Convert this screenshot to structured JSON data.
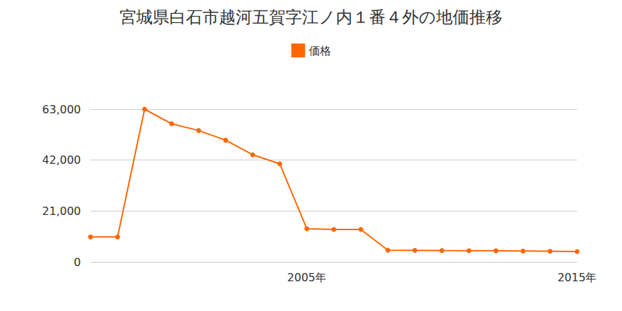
{
  "chart_data": {
    "type": "line",
    "title": "宮城県白石市越河五賀字江ノ内１番４外の地価推移",
    "categories": [
      null,
      null,
      null,
      null,
      null,
      null,
      null,
      null,
      "2005年",
      null,
      null,
      null,
      null,
      null,
      null,
      null,
      null,
      null,
      "2015年"
    ],
    "series": [
      {
        "name": "価格",
        "color": "#ff6600",
        "marker": "circle",
        "line_style": "solid",
        "values": [
          10300,
          10300,
          63000,
          57000,
          54200,
          50200,
          44200,
          40500,
          13700,
          13400,
          13400,
          4850,
          4800,
          4700,
          4650,
          4600,
          4500,
          4400,
          4300
        ]
      }
    ],
    "ylim": [
      0,
      63000
    ],
    "yticks": [
      0,
      {
        "value": 21000,
        "label": "21,000"
      },
      {
        "value": 42000,
        "label": "42,000"
      },
      {
        "value": 63000,
        "label": "63,000"
      }
    ],
    "grid": true,
    "legend": "top"
  }
}
